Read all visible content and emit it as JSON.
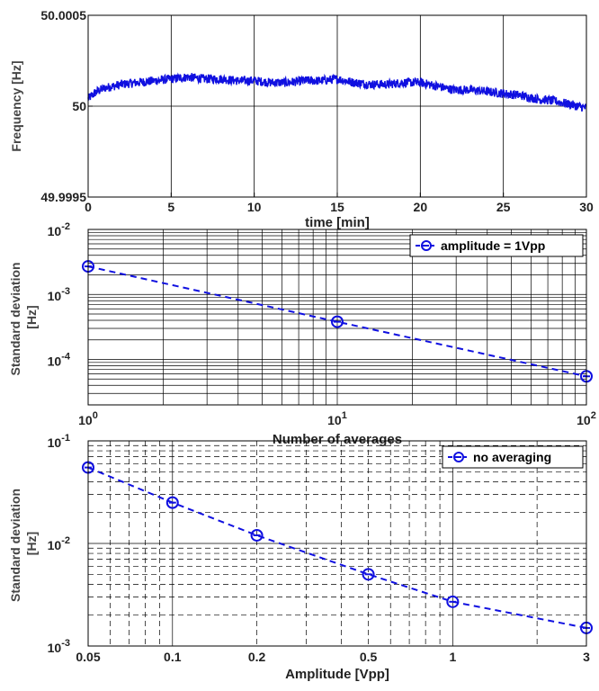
{
  "colors": {
    "series": "#1010e0",
    "grid": "#000000",
    "axis": "#000000"
  },
  "chart_data": [
    {
      "type": "line",
      "xlabel": "time [min]",
      "ylabel": "Frequency [Hz]",
      "xlim": [
        0,
        30
      ],
      "ylim": [
        49.9995,
        50.0005
      ],
      "x_ticks": [
        0,
        5,
        10,
        15,
        20,
        25,
        30
      ],
      "x_tick_labels": [
        "0",
        "5",
        "10",
        "15",
        "20",
        "25",
        "30"
      ],
      "y_ticks": [
        49.9995,
        50,
        50.0005
      ],
      "y_tick_labels": [
        "49.9995",
        "50",
        "50.0005"
      ],
      "grid": "x-major and y-major",
      "series": [
        {
          "x": [
            0,
            0.5,
            1,
            2,
            3,
            4,
            5,
            6,
            7,
            8,
            9,
            10,
            11,
            12,
            13,
            14,
            15,
            16,
            17,
            18,
            19,
            20,
            21,
            22,
            23,
            24,
            25,
            26,
            27,
            28,
            29,
            30
          ],
          "values": [
            50.00004,
            50.00008,
            50.0001,
            50.00012,
            50.00013,
            50.00014,
            50.00015,
            50.00016,
            50.00015,
            50.00015,
            50.00014,
            50.00014,
            50.00013,
            50.00013,
            50.00014,
            50.00014,
            50.00015,
            50.00013,
            50.00012,
            50.00012,
            50.00013,
            50.00013,
            50.00011,
            50.00009,
            50.00009,
            50.00008,
            50.00007,
            50.00006,
            50.00004,
            50.00003,
            50.00001,
            49.99999
          ],
          "noise": 2.5e-05
        }
      ]
    },
    {
      "type": "line",
      "xlabel": "Number of averages",
      "ylabel": "Standard deviation [Hz]",
      "ylabel_lines": [
        "Standard deviation",
        "[Hz]"
      ],
      "xscale": "log",
      "yscale": "log",
      "xlim": [
        1,
        100
      ],
      "ylim": [
        2e-05,
        0.01
      ],
      "x_tick_labels": [
        {
          "base": "10",
          "exp": "0",
          "value": 1
        },
        {
          "base": "10",
          "exp": "1",
          "value": 10
        },
        {
          "base": "10",
          "exp": "2",
          "value": 100
        }
      ],
      "y_tick_labels": [
        {
          "base": "10",
          "exp": "-2",
          "value": 0.01
        },
        {
          "base": "10",
          "exp": "-3",
          "value": 0.001
        },
        {
          "base": "10",
          "exp": "-4",
          "value": 0.0001
        }
      ],
      "grid": "major and minor",
      "legend": "top-right",
      "series": [
        {
          "name": "amplitude = 1Vpp",
          "x": [
            1,
            10,
            100
          ],
          "values": [
            0.0027,
            0.00038,
            5.5e-05
          ]
        }
      ]
    },
    {
      "type": "line",
      "xlabel": "Amplitude [Vpp]",
      "ylabel": "Standard deviation [Hz]",
      "ylabel_lines": [
        "Standard deviation",
        "[Hz]"
      ],
      "xscale": "log",
      "yscale": "log",
      "xlim": [
        0.05,
        3
      ],
      "ylim": [
        0.001,
        0.1
      ],
      "x_ticks": [
        0.05,
        0.1,
        0.2,
        0.5,
        1,
        3
      ],
      "x_tick_labels": [
        "0.05",
        "0.1",
        "0.2",
        "0.5",
        "1",
        "3"
      ],
      "y_tick_labels": [
        {
          "base": "10",
          "exp": "-1",
          "value": 0.1
        },
        {
          "base": "10",
          "exp": "-2",
          "value": 0.01
        },
        {
          "base": "10",
          "exp": "-3",
          "value": 0.001
        }
      ],
      "grid": "major and minor (dashed)",
      "legend": "top-right",
      "series": [
        {
          "name": "no averaging",
          "x": [
            0.05,
            0.1,
            0.2,
            0.5,
            1,
            3
          ],
          "values": [
            0.055,
            0.025,
            0.012,
            0.005,
            0.0027,
            0.0015
          ]
        }
      ]
    }
  ]
}
